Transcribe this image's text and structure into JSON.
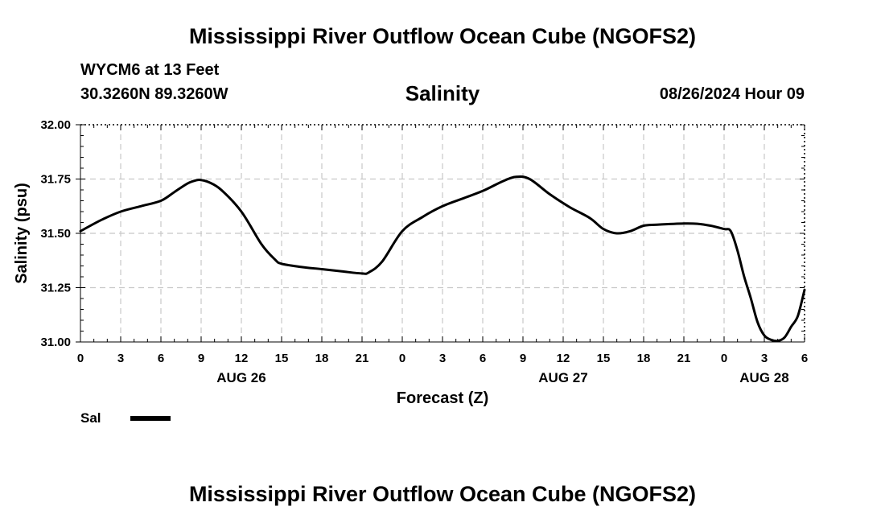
{
  "header": {
    "title": "Mississippi River Outflow Ocean Cube (NGOFS2)",
    "station": "WYCM6 at 13 Feet",
    "coords": "30.3260N  89.3260W",
    "datetime": "08/26/2024 Hour 09"
  },
  "footer": {
    "title": "Mississippi River Outflow Ocean Cube (NGOFS2)"
  },
  "legend": {
    "label": "Sal",
    "color": "#000000"
  },
  "chart_data": {
    "type": "line",
    "title": "Salinity",
    "xlabel": "Forecast (Z)",
    "ylabel": "Salinity (psu)",
    "xlim": [
      0,
      54
    ],
    "ylim": [
      31.0,
      32.0
    ],
    "grid": true,
    "x_ticks": [
      0,
      3,
      6,
      9,
      12,
      15,
      18,
      21,
      24,
      27,
      30,
      33,
      36,
      39,
      42,
      45,
      48,
      51,
      54
    ],
    "x_tick_labels": [
      "0",
      "3",
      "6",
      "9",
      "12",
      "15",
      "18",
      "21",
      "0",
      "3",
      "6",
      "9",
      "12",
      "15",
      "18",
      "21",
      "0",
      "3",
      "6"
    ],
    "day_labels": [
      {
        "x": 12,
        "label": "AUG 26"
      },
      {
        "x": 36,
        "label": "AUG 27"
      },
      {
        "x": 51,
        "label": "AUG 28"
      }
    ],
    "y_ticks": [
      31.0,
      31.25,
      31.5,
      31.75,
      32.0
    ],
    "y_tick_labels": [
      "31.00",
      "31.25",
      "31.50",
      "31.75",
      "32.00"
    ],
    "series": [
      {
        "name": "Sal",
        "color": "#000000",
        "x": [
          0,
          1.5,
          3,
          4.5,
          6,
          7,
          8,
          8.7,
          9,
          9.6,
          10.5,
          12,
          13.5,
          14.5,
          15,
          16.5,
          18,
          19.5,
          21,
          21.5,
          22.5,
          24,
          25.5,
          27,
          28.5,
          30,
          31.5,
          32.5,
          33.5,
          35,
          36.5,
          38,
          39,
          40,
          41,
          42,
          43,
          45,
          46,
          47,
          48,
          48.5,
          49,
          49.5,
          50,
          50.5,
          51,
          51.5,
          52,
          52.5,
          53,
          53.5,
          54
        ],
        "values": [
          31.51,
          31.56,
          31.6,
          31.625,
          31.65,
          31.69,
          31.73,
          31.745,
          31.745,
          31.735,
          31.7,
          31.6,
          31.45,
          31.38,
          31.36,
          31.345,
          31.335,
          31.325,
          31.315,
          31.32,
          31.37,
          31.51,
          31.575,
          31.625,
          31.66,
          31.695,
          31.74,
          31.76,
          31.75,
          31.68,
          31.62,
          31.57,
          31.52,
          31.5,
          31.51,
          31.535,
          31.54,
          31.545,
          31.544,
          31.535,
          31.52,
          31.51,
          31.42,
          31.3,
          31.2,
          31.09,
          31.03,
          31.01,
          31.005,
          31.02,
          31.07,
          31.12,
          31.24
        ]
      }
    ]
  }
}
